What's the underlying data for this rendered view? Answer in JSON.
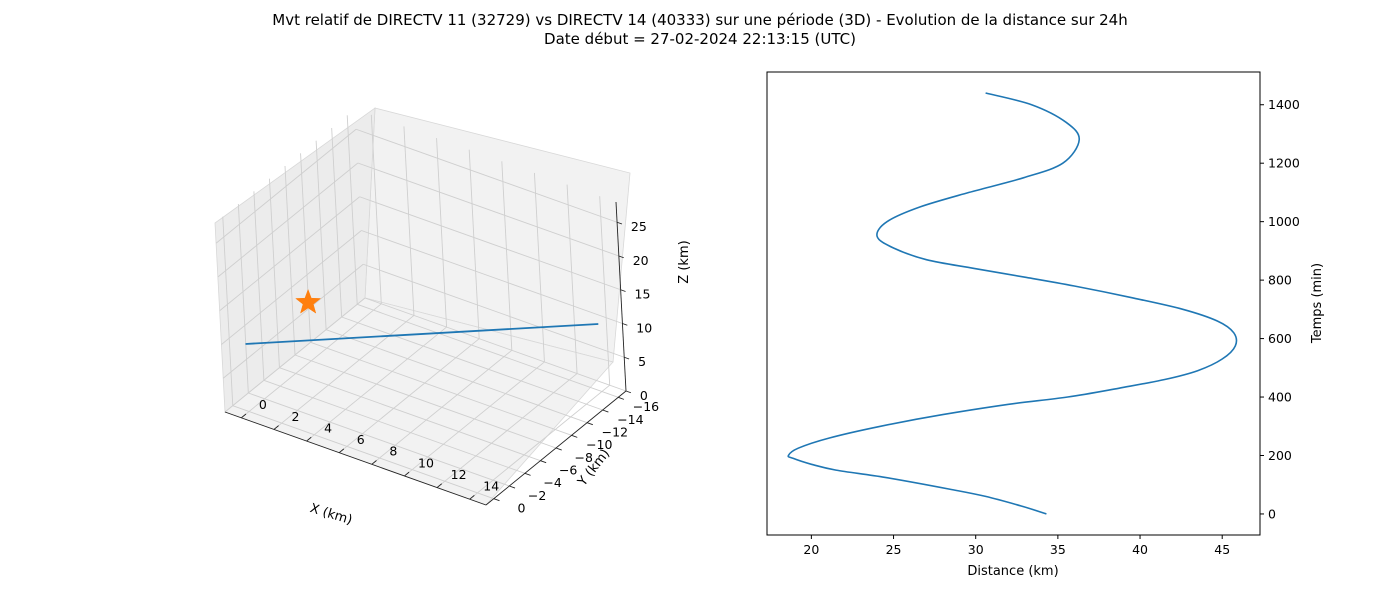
{
  "figure": {
    "title_line1": "Mvt relatif de DIRECTV 11 (32729) vs DIRECTV 14 (40333) sur une période (3D) - Evolution de la distance sur 24h",
    "title_line2": "Date début = 27-02-2024 22:13:15 (UTC)"
  },
  "colors": {
    "line": "#1f77b4",
    "marker": "#ff7f0e"
  },
  "chart_data": [
    {
      "type": "line",
      "projection": "3d",
      "title": "",
      "xlabel": "X (km)",
      "ylabel": "Y (km)",
      "zlabel": "Z (km)",
      "xlim": [
        -1,
        15
      ],
      "ylim": [
        -17,
        1
      ],
      "zlim": [
        0,
        28
      ],
      "xticks": [
        0,
        2,
        4,
        6,
        8,
        10,
        12,
        14
      ],
      "yticks": [
        0,
        -2,
        -4,
        -6,
        -8,
        -10,
        -12,
        -14,
        -16
      ],
      "zticks": [
        0,
        5,
        10,
        15,
        20,
        25
      ],
      "tick_labels": {
        "x": [
          "0",
          "2",
          "4",
          "6",
          "8",
          "10",
          "12",
          "14"
        ],
        "y": [
          "0",
          "−2",
          "−4",
          "−6",
          "−8",
          "−10",
          "−12",
          "−14",
          "−16"
        ],
        "z": [
          "0",
          "5",
          "10",
          "15",
          "20",
          "25"
        ]
      },
      "grid": true,
      "series": [
        {
          "kind": "line",
          "points": [
            [
              0,
              0,
              10
            ],
            [
              14,
              -16,
              10
            ]
          ]
        },
        {
          "kind": "marker",
          "marker": "star",
          "points": [
            [
              0.5,
              -7,
              10
            ]
          ]
        }
      ]
    },
    {
      "type": "line",
      "title": "",
      "xlabel": "Distance (km)",
      "ylabel": "Temps (min)",
      "xlim": [
        17.3,
        47.3
      ],
      "ylim": [
        -72,
        1512
      ],
      "xticks": [
        20,
        25,
        30,
        35,
        40,
        45
      ],
      "yticks": [
        0,
        200,
        400,
        600,
        800,
        1000,
        1200,
        1400
      ],
      "grid": false,
      "yaxis_side": "right",
      "series": [
        {
          "x": [
            34.3,
            32.9,
            30.6,
            28.4,
            24.5,
            21.5,
            20.0,
            18.9,
            18.6,
            19.2,
            21.1,
            24.2,
            28.0,
            32.0,
            35.6,
            38.7,
            41.5,
            43.5,
            45.0,
            45.8,
            45.7,
            44.7,
            42.6,
            39.5,
            36.0,
            33.0,
            29.9,
            27.0,
            25.0,
            24.0,
            24.6,
            26.6,
            29.6,
            32.9,
            35.3,
            36.3,
            35.5,
            33.4,
            30.6
          ],
          "y": [
            0,
            25,
            60,
            85,
            125,
            150,
            170,
            190,
            200,
            225,
            260,
            300,
            340,
            375,
            400,
            430,
            460,
            490,
            530,
            575,
            620,
            660,
            700,
            740,
            780,
            810,
            840,
            870,
            910,
            950,
            1000,
            1050,
            1100,
            1150,
            1200,
            1280,
            1340,
            1400,
            1440
          ]
        }
      ]
    }
  ]
}
